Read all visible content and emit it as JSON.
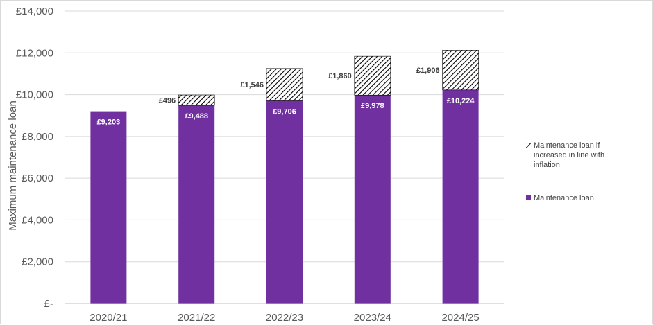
{
  "chart_data": {
    "type": "bar",
    "stacked": true,
    "categories": [
      "2020/21",
      "2021/22",
      "2022/23",
      "2023/24",
      "2024/25"
    ],
    "series": [
      {
        "name": "Maintenance loan",
        "values": [
          9203,
          9488,
          9706,
          9978,
          10224
        ],
        "labels": [
          "£9,203",
          "£9,488",
          "£9,706",
          "£9,978",
          "£10,224"
        ],
        "color": "#7030a0",
        "pattern": "solid"
      },
      {
        "name": "Maintenance loan if increased in line with inflation",
        "values": [
          null,
          496,
          1546,
          1860,
          1906
        ],
        "labels": [
          "",
          "£496",
          "£1,546",
          "£1,860",
          "£1,906"
        ],
        "color": "#000000",
        "pattern": "diagonal-hatch"
      }
    ],
    "ylabel": "Maximum maintenance loan",
    "ylim": [
      0,
      14000
    ],
    "yticks": [
      0,
      2000,
      4000,
      6000,
      8000,
      10000,
      12000,
      14000
    ],
    "ytick_labels": [
      "£-",
      "£2,000",
      "£4,000",
      "£6,000",
      "£8,000",
      "£10,000",
      "£12,000",
      "£14,000"
    ],
    "gridlines": true,
    "legend_position": "right",
    "legend_order": [
      1,
      0
    ],
    "legend_lines": [
      [
        "Maintenance loan if",
        "increased in line with",
        "inflation"
      ],
      [
        "Maintenance loan"
      ]
    ]
  }
}
